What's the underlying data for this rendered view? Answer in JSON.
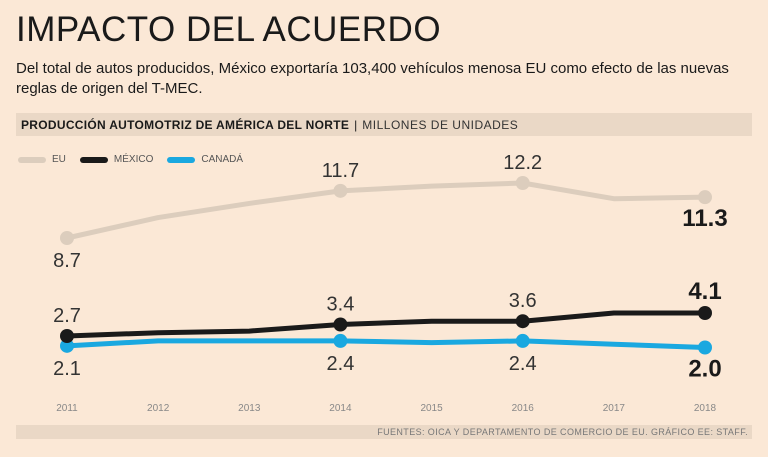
{
  "header": {
    "title": "IMPACTO DEL ACUERDO",
    "subtitle": "Del total de autos producidos, México exportaría 103,400 vehículos menosa EU como efecto de las nuevas reglas de origen del T-MEC."
  },
  "chart_bar": {
    "label": "PRODUCCIÓN AUTOMOTRIZ DE AMÉRICA DEL NORTE",
    "separator": "|",
    "units": "MILLONES DE UNIDADES"
  },
  "chart_data": {
    "type": "line",
    "title": "PRODUCCIÓN AUTOMOTRIZ DE AMÉRICA DEL NORTE",
    "ylabel": "MILLONES DE UNIDADES",
    "xlabel": "",
    "x": [
      "2011",
      "2012",
      "2013",
      "2014",
      "2015",
      "2016",
      "2017",
      "2018"
    ],
    "series": [
      {
        "name": "EU",
        "color": "#dccdbd",
        "values": [
          8.7,
          10.0,
          10.9,
          11.7,
          12.0,
          12.2,
          11.2,
          11.3
        ],
        "labeled": [
          {
            "index": 0,
            "text": "8.7",
            "pos": "below",
            "bold": false
          },
          {
            "index": 3,
            "text": "11.7",
            "pos": "above",
            "bold": false
          },
          {
            "index": 5,
            "text": "12.2",
            "pos": "above",
            "bold": false
          },
          {
            "index": 7,
            "text": "11.3",
            "pos": "below",
            "bold": true
          }
        ]
      },
      {
        "name": "MÉXICO",
        "color": "#1a1a1a",
        "values": [
          2.7,
          2.9,
          3.0,
          3.4,
          3.6,
          3.6,
          4.1,
          4.1
        ],
        "labeled": [
          {
            "index": 0,
            "text": "2.7",
            "pos": "above",
            "bold": false
          },
          {
            "index": 3,
            "text": "3.4",
            "pos": "above",
            "bold": false
          },
          {
            "index": 5,
            "text": "3.6",
            "pos": "above",
            "bold": false
          },
          {
            "index": 7,
            "text": "4.1",
            "pos": "above",
            "bold": true
          }
        ]
      },
      {
        "name": "CANADÁ",
        "color": "#1aa8e0",
        "values": [
          2.1,
          2.4,
          2.4,
          2.4,
          2.3,
          2.4,
          2.2,
          2.0
        ],
        "labeled": [
          {
            "index": 0,
            "text": "2.1",
            "pos": "below",
            "bold": false
          },
          {
            "index": 3,
            "text": "2.4",
            "pos": "below",
            "bold": false
          },
          {
            "index": 5,
            "text": "2.4",
            "pos": "below",
            "bold": false
          },
          {
            "index": 7,
            "text": "2.0",
            "pos": "below",
            "bold": true
          }
        ]
      }
    ],
    "grid": false,
    "legend": "top-left"
  },
  "footer": {
    "source": "FUENTES: OICA Y DEPARTAMENTO DE COMERCIO DE EU. GRÁFICO EE: STAFF."
  }
}
